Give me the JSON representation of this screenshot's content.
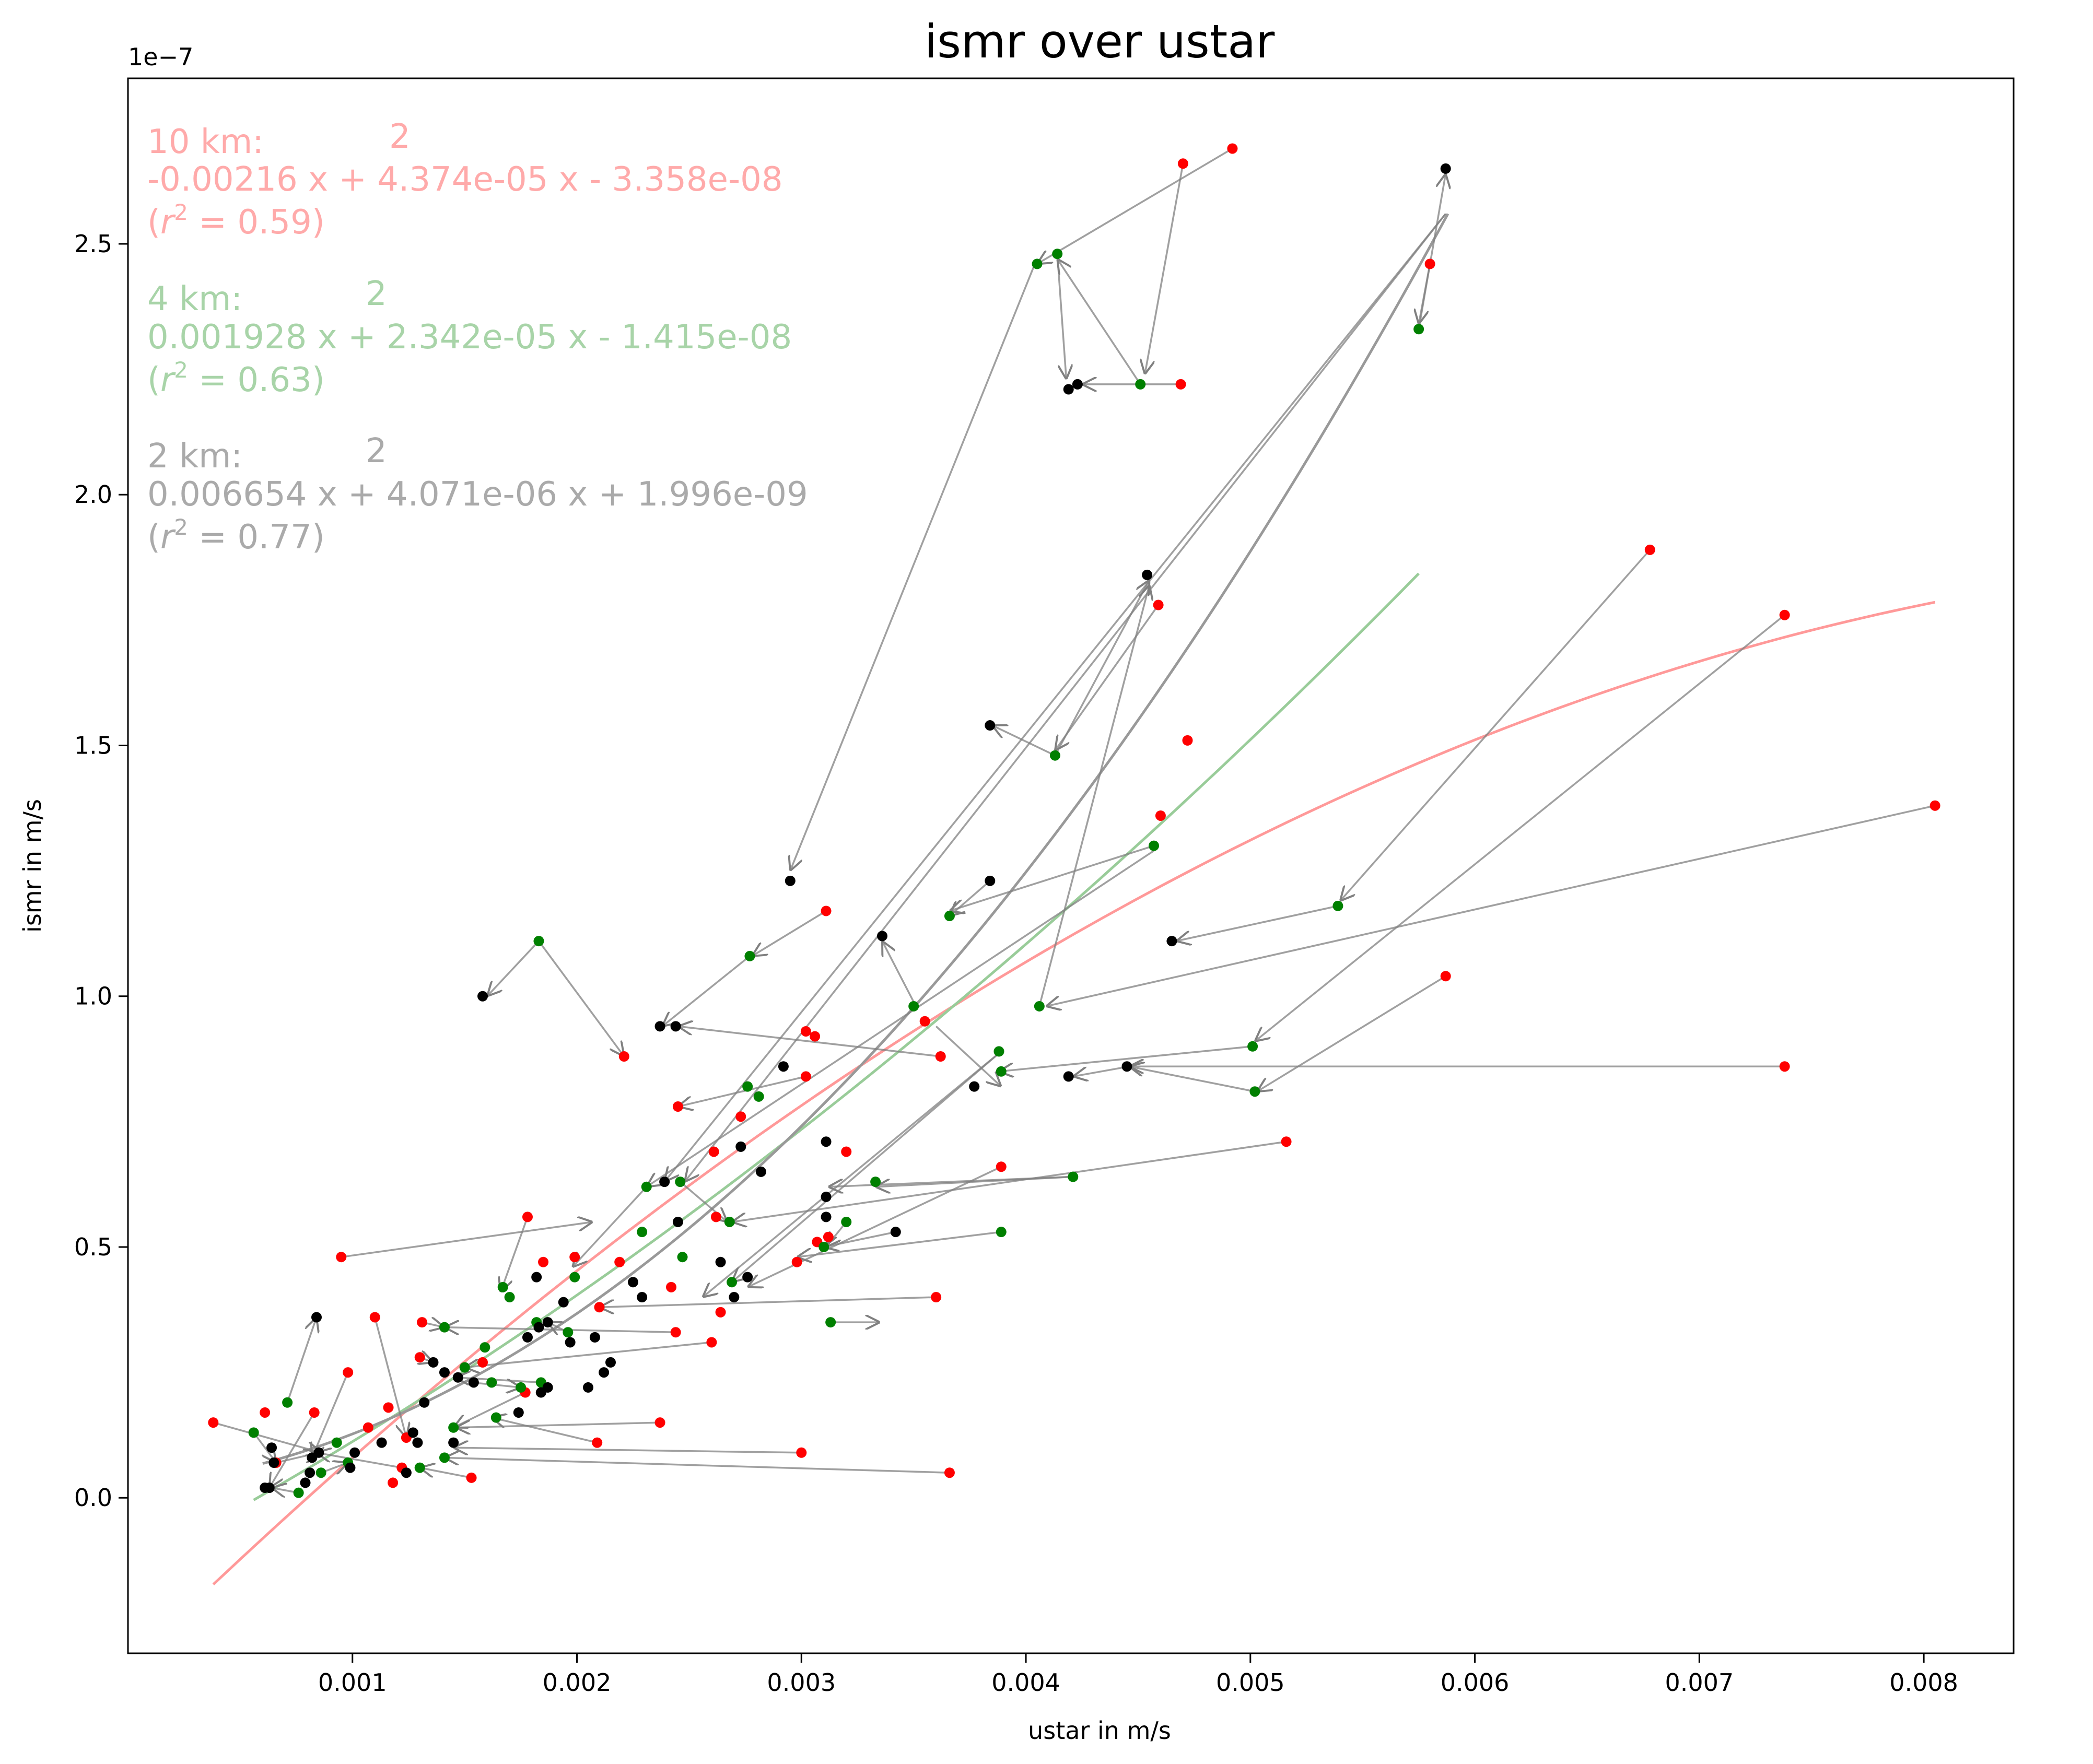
{
  "chart_data": {
    "type": "scatter",
    "title": "ismr over ustar",
    "xlabel": "ustar in m/s",
    "ylabel": "ismr in m/s",
    "y_offset_text": "1e−7",
    "xlim": [
      0.0,
      0.0084
    ],
    "ylim": [
      -0.31,
      2.83
    ],
    "y_scale": 1e-07,
    "xticks": [
      0.001,
      0.002,
      0.003,
      0.004,
      0.005,
      0.006,
      0.007,
      0.008
    ],
    "xtick_labels": [
      "0.001",
      "0.002",
      "0.003",
      "0.004",
      "0.005",
      "0.006",
      "0.007",
      "0.008"
    ],
    "yticks": [
      0.0,
      0.5,
      1.0,
      1.5,
      2.0,
      2.5
    ],
    "ytick_labels": [
      "0.0",
      "0.5",
      "1.0",
      "1.5",
      "2.0",
      "2.5"
    ],
    "grid": false,
    "colors": {
      "10km": "#ff0000",
      "4km": "#008000",
      "2km": "#000000",
      "fit_10km": "#ff9999",
      "fit_4km": "#99cc99",
      "fit_2km": "#999999",
      "arrow": "#808080"
    },
    "annotations": [
      {
        "series": "10km",
        "head": "10 km:",
        "exp": "2",
        "equation": "-0.00216 x + 4.374e-05 x - 3.358e-08",
        "r2_prefix": " (",
        "r2_sym": "r",
        "r2_exp": "2",
        "r2_value": " = 0.59)",
        "color": "#ffaaaa"
      },
      {
        "series": "4km",
        "head": "4 km:",
        "exp": "2",
        "equation": "0.001928 x + 2.342e-05 x - 1.415e-08",
        "r2_prefix": " (",
        "r2_sym": "r",
        "r2_exp": "2",
        "r2_value": " = 0.63)",
        "color": "#a8d4a8"
      },
      {
        "series": "2km",
        "head": "2 km:",
        "exp": "2",
        "equation": "0.006654 x + 4.071e-06 x + 1.996e-09",
        "r2_prefix": " (",
        "r2_sym": "r",
        "r2_exp": "2",
        "r2_value": " = 0.77)",
        "color": "#aaaaaa"
      }
    ],
    "fits": [
      {
        "name": "10km fit",
        "coeffs": [
          -0.00216,
          4.374e-05,
          -3.358e-08
        ],
        "xrange": [
          0.00038,
          0.00805
        ],
        "color": "#ff9999"
      },
      {
        "name": "4km fit",
        "coeffs": [
          0.001928,
          2.342e-05,
          -1.415e-08
        ],
        "xrange": [
          0.00056,
          0.00575
        ],
        "color": "#99cc99"
      },
      {
        "name": "2km fit",
        "coeffs": [
          0.006654,
          4.071e-06,
          1.996e-09
        ],
        "xrange": [
          0.0006,
          0.00588
        ],
        "color": "#999999"
      }
    ],
    "series": [
      {
        "name": "10 km",
        "color": "#ff0000",
        "points": [
          [
            0.00492,
            2.69
          ],
          [
            0.0047,
            2.66
          ],
          [
            0.0058,
            2.46
          ],
          [
            0.00469,
            2.22
          ],
          [
            0.00678,
            1.89
          ],
          [
            0.00738,
            1.76
          ],
          [
            0.00459,
            1.78
          ],
          [
            0.00472,
            1.51
          ],
          [
            0.0046,
            1.36
          ],
          [
            0.00805,
            1.38
          ],
          [
            0.00587,
            1.04
          ],
          [
            0.00311,
            1.17
          ],
          [
            0.00355,
            0.95
          ],
          [
            0.00302,
            0.93
          ],
          [
            0.00306,
            0.92
          ],
          [
            0.00221,
            0.88
          ],
          [
            0.00362,
            0.88
          ],
          [
            0.00738,
            0.86
          ],
          [
            0.00302,
            0.84
          ],
          [
            0.00245,
            0.78
          ],
          [
            0.00273,
            0.76
          ],
          [
            0.0032,
            0.69
          ],
          [
            0.00261,
            0.69
          ],
          [
            0.00516,
            0.71
          ],
          [
            0.00389,
            0.66
          ],
          [
            0.00262,
            0.56
          ],
          [
            0.00178,
            0.56
          ],
          [
            0.00307,
            0.51
          ],
          [
            0.00312,
            0.52
          ],
          [
            0.00095,
            0.48
          ],
          [
            0.00185,
            0.47
          ],
          [
            0.00199,
            0.48
          ],
          [
            0.00219,
            0.47
          ],
          [
            0.00298,
            0.47
          ],
          [
            0.0036,
            0.4
          ],
          [
            0.0021,
            0.38
          ],
          [
            0.00242,
            0.42
          ],
          [
            0.00264,
            0.37
          ],
          [
            0.0011,
            0.36
          ],
          [
            0.00131,
            0.35
          ],
          [
            0.00244,
            0.33
          ],
          [
            0.0026,
            0.31
          ],
          [
            0.00158,
            0.27
          ],
          [
            0.0013,
            0.28
          ],
          [
            0.00098,
            0.25
          ],
          [
            0.00177,
            0.21
          ],
          [
            0.00116,
            0.18
          ],
          [
            0.00061,
            0.17
          ],
          [
            0.00083,
            0.17
          ],
          [
            0.00107,
            0.14
          ],
          [
            0.00124,
            0.12
          ],
          [
            0.00038,
            0.15
          ],
          [
            0.00237,
            0.15
          ],
          [
            0.00209,
            0.11
          ],
          [
            0.003,
            0.09
          ],
          [
            0.00122,
            0.06
          ],
          [
            0.00066,
            0.07
          ],
          [
            0.00366,
            0.05
          ],
          [
            0.00153,
            0.04
          ],
          [
            0.00118,
            0.03
          ]
        ]
      },
      {
        "name": "4 km",
        "color": "#008000",
        "points": [
          [
            0.00414,
            2.48
          ],
          [
            0.00405,
            2.46
          ],
          [
            0.00575,
            2.33
          ],
          [
            0.00451,
            2.22
          ],
          [
            0.00413,
            1.48
          ],
          [
            0.00457,
            1.3
          ],
          [
            0.00539,
            1.18
          ],
          [
            0.00366,
            1.16
          ],
          [
            0.00183,
            1.11
          ],
          [
            0.00277,
            1.08
          ],
          [
            0.0035,
            0.98
          ],
          [
            0.00406,
            0.98
          ],
          [
            0.00501,
            0.9
          ],
          [
            0.00388,
            0.89
          ],
          [
            0.00389,
            0.85
          ],
          [
            0.00276,
            0.82
          ],
          [
            0.00281,
            0.8
          ],
          [
            0.00502,
            0.81
          ],
          [
            0.00421,
            0.64
          ],
          [
            0.00333,
            0.63
          ],
          [
            0.00231,
            0.62
          ],
          [
            0.00246,
            0.63
          ],
          [
            0.00389,
            0.53
          ],
          [
            0.0032,
            0.55
          ],
          [
            0.00268,
            0.55
          ],
          [
            0.00229,
            0.53
          ],
          [
            0.0031,
            0.5
          ],
          [
            0.00247,
            0.48
          ],
          [
            0.00199,
            0.44
          ],
          [
            0.00167,
            0.42
          ],
          [
            0.00269,
            0.43
          ],
          [
            0.0017,
            0.4
          ],
          [
            0.00313,
            0.35
          ],
          [
            0.00141,
            0.34
          ],
          [
            0.00196,
            0.33
          ],
          [
            0.00182,
            0.35
          ],
          [
            0.00159,
            0.3
          ],
          [
            0.0015,
            0.26
          ],
          [
            0.00162,
            0.23
          ],
          [
            0.00184,
            0.23
          ],
          [
            0.00175,
            0.22
          ],
          [
            0.00164,
            0.16
          ],
          [
            0.00071,
            0.19
          ],
          [
            0.00056,
            0.13
          ],
          [
            0.00145,
            0.14
          ],
          [
            0.00093,
            0.11
          ],
          [
            0.00098,
            0.07
          ],
          [
            0.00086,
            0.05
          ],
          [
            0.00076,
            0.01
          ],
          [
            0.0013,
            0.06
          ],
          [
            0.00141,
            0.08
          ]
        ]
      },
      {
        "name": "2 km",
        "color": "#000000",
        "points": [
          [
            0.00587,
            2.65
          ],
          [
            0.00419,
            2.21
          ],
          [
            0.00423,
            2.22
          ],
          [
            0.00454,
            1.84
          ],
          [
            0.00384,
            1.54
          ],
          [
            0.00384,
            1.23
          ],
          [
            0.00295,
            1.23
          ],
          [
            0.00336,
            1.12
          ],
          [
            0.00465,
            1.11
          ],
          [
            0.00158,
            1.0
          ],
          [
            0.00237,
            0.94
          ],
          [
            0.00244,
            0.94
          ],
          [
            0.00445,
            0.86
          ],
          [
            0.00419,
            0.84
          ],
          [
            0.00292,
            0.86
          ],
          [
            0.00377,
            0.82
          ],
          [
            0.00311,
            0.71
          ],
          [
            0.00273,
            0.7
          ],
          [
            0.00282,
            0.65
          ],
          [
            0.00239,
            0.63
          ],
          [
            0.00311,
            0.6
          ],
          [
            0.00311,
            0.56
          ],
          [
            0.00342,
            0.53
          ],
          [
            0.00245,
            0.55
          ],
          [
            0.00264,
            0.47
          ],
          [
            0.00276,
            0.44
          ],
          [
            0.0027,
            0.4
          ],
          [
            0.00182,
            0.44
          ],
          [
            0.00225,
            0.43
          ],
          [
            0.00229,
            0.4
          ],
          [
            0.00187,
            0.35
          ],
          [
            0.00194,
            0.39
          ],
          [
            0.00084,
            0.36
          ],
          [
            0.00183,
            0.34
          ],
          [
            0.00208,
            0.32
          ],
          [
            0.00197,
            0.31
          ],
          [
            0.00215,
            0.27
          ],
          [
            0.00212,
            0.25
          ],
          [
            0.00178,
            0.32
          ],
          [
            0.00136,
            0.27
          ],
          [
            0.00141,
            0.25
          ],
          [
            0.00147,
            0.24
          ],
          [
            0.00154,
            0.23
          ],
          [
            0.00184,
            0.21
          ],
          [
            0.00187,
            0.22
          ],
          [
            0.00205,
            0.22
          ],
          [
            0.00132,
            0.19
          ],
          [
            0.00174,
            0.17
          ],
          [
            0.00113,
            0.11
          ],
          [
            0.00127,
            0.13
          ],
          [
            0.00145,
            0.11
          ],
          [
            0.00129,
            0.11
          ],
          [
            0.00101,
            0.09
          ],
          [
            0.00082,
            0.08
          ],
          [
            0.00085,
            0.09
          ],
          [
            0.00064,
            0.1
          ],
          [
            0.00065,
            0.07
          ],
          [
            0.00124,
            0.05
          ],
          [
            0.00081,
            0.05
          ],
          [
            0.00099,
            0.06
          ],
          [
            0.00079,
            0.03
          ],
          [
            0.00063,
            0.02
          ],
          [
            0.00061,
            0.02
          ]
        ]
      }
    ],
    "arrows": [
      [
        0.00492,
        2.69,
        0.00405,
        2.46
      ],
      [
        0.0047,
        2.66,
        0.00453,
        2.24
      ],
      [
        0.00469,
        2.22,
        0.00425,
        2.22
      ],
      [
        0.00404,
        2.46,
        0.00295,
        1.25
      ],
      [
        0.00414,
        2.48,
        0.00418,
        2.23
      ],
      [
        0.00451,
        2.22,
        0.00414,
        2.47
      ],
      [
        0.0058,
        2.46,
        0.00575,
        2.34
      ],
      [
        0.00575,
        2.33,
        0.00587,
        2.64
      ],
      [
        0.00459,
        1.78,
        0.00413,
        1.49
      ],
      [
        0.00413,
        1.48,
        0.00455,
        1.83
      ],
      [
        0.00413,
        1.48,
        0.00385,
        1.54
      ],
      [
        0.00406,
        0.98,
        0.00455,
        1.82
      ],
      [
        0.00678,
        1.89,
        0.0054,
        1.19
      ],
      [
        0.00738,
        1.76,
        0.00502,
        0.91
      ],
      [
        0.00805,
        1.38,
        0.00409,
        0.98
      ],
      [
        0.00539,
        1.18,
        0.00467,
        1.11
      ],
      [
        0.00457,
        1.3,
        0.00366,
        1.17
      ],
      [
        0.00384,
        1.23,
        0.00366,
        1.16
      ],
      [
        0.00351,
        0.98,
        0.00336,
        1.11
      ],
      [
        0.00277,
        1.08,
        0.00238,
        0.94
      ],
      [
        0.00311,
        1.17,
        0.00278,
        1.08
      ],
      [
        0.00183,
        1.11,
        0.0016,
        1.0
      ],
      [
        0.00183,
        1.11,
        0.00221,
        0.88
      ],
      [
        0.00362,
        0.88,
        0.00245,
        0.94
      ],
      [
        0.00738,
        0.86,
        0.00446,
        0.86
      ],
      [
        0.00502,
        0.81,
        0.00446,
        0.86
      ],
      [
        0.00446,
        0.86,
        0.00421,
        0.84
      ],
      [
        0.00501,
        0.9,
        0.00388,
        0.85
      ],
      [
        0.00587,
        1.04,
        0.00503,
        0.81
      ],
      [
        0.0036,
        0.94,
        0.00389,
        0.82
      ],
      [
        0.00302,
        0.84,
        0.00245,
        0.78
      ],
      [
        0.00457,
        1.29,
        0.00231,
        0.62
      ],
      [
        0.00587,
        2.56,
        0.00248,
        0.63
      ],
      [
        0.00587,
        2.56,
        0.00239,
        0.63
      ],
      [
        0.00516,
        0.71,
        0.00269,
        0.55
      ],
      [
        0.00389,
        0.66,
        0.00276,
        0.42
      ],
      [
        0.00389,
        0.53,
        0.00298,
        0.48
      ],
      [
        0.00421,
        0.64,
        0.00333,
        0.62
      ],
      [
        0.0042,
        0.64,
        0.00312,
        0.62
      ],
      [
        0.00342,
        0.53,
        0.0031,
        0.5
      ],
      [
        0.0032,
        0.55,
        0.00311,
        0.5
      ],
      [
        0.00246,
        0.63,
        0.00267,
        0.55
      ],
      [
        0.00095,
        0.48,
        0.00207,
        0.55
      ],
      [
        0.00231,
        0.62,
        0.00198,
        0.46
      ],
      [
        0.00178,
        0.56,
        0.00166,
        0.41
      ],
      [
        0.00389,
        0.89,
        0.00269,
        0.43
      ],
      [
        0.00389,
        0.89,
        0.00256,
        0.4
      ],
      [
        0.0036,
        0.4,
        0.0021,
        0.38
      ],
      [
        0.00313,
        0.35,
        0.00335,
        0.35
      ],
      [
        0.00244,
        0.33,
        0.00141,
        0.34
      ],
      [
        0.0026,
        0.31,
        0.0015,
        0.26
      ],
      [
        0.00184,
        0.23,
        0.00146,
        0.24
      ],
      [
        0.0013,
        0.28,
        0.00136,
        0.27
      ],
      [
        0.00177,
        0.21,
        0.00145,
        0.14
      ],
      [
        0.00237,
        0.15,
        0.00146,
        0.14
      ],
      [
        0.00209,
        0.11,
        0.00162,
        0.16
      ],
      [
        0.003,
        0.09,
        0.00145,
        0.1
      ],
      [
        0.00366,
        0.05,
        0.00141,
        0.08
      ],
      [
        0.00122,
        0.06,
        0.00084,
        0.09
      ],
      [
        0.00066,
        0.07,
        0.00085,
        0.09
      ],
      [
        0.00098,
        0.25,
        0.00082,
        0.08
      ],
      [
        0.00071,
        0.19,
        0.00084,
        0.36
      ],
      [
        0.00038,
        0.15,
        0.00086,
        0.09
      ],
      [
        0.00056,
        0.13,
        0.00066,
        0.07
      ],
      [
        0.00083,
        0.17,
        0.00063,
        0.02
      ],
      [
        0.00076,
        0.01,
        0.00064,
        0.02
      ],
      [
        0.00153,
        0.04,
        0.0013,
        0.06
      ],
      [
        0.0011,
        0.36,
        0.00124,
        0.12
      ],
      [
        0.00131,
        0.35,
        0.00141,
        0.34
      ],
      [
        0.00153,
        0.23,
        0.00175,
        0.22
      ],
      [
        0.00196,
        0.33,
        0.00187,
        0.35
      ],
      [
        0.00086,
        0.05,
        0.00098,
        0.07
      ]
    ]
  }
}
